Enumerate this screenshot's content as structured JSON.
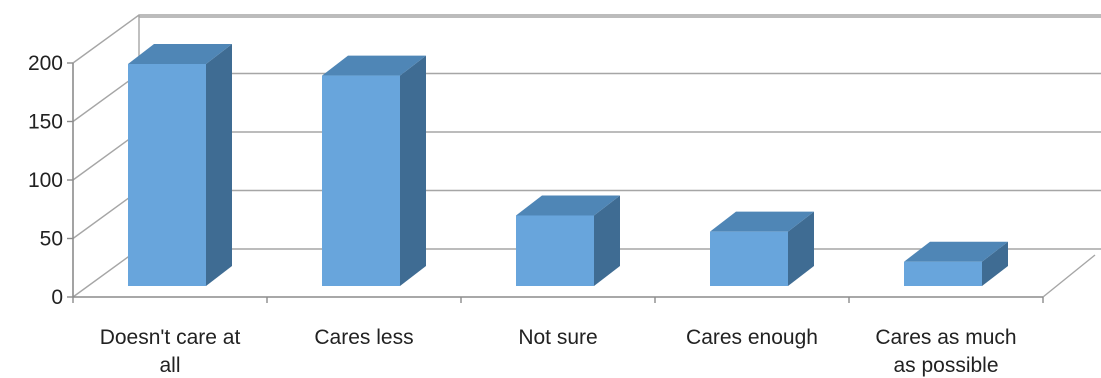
{
  "chart_data": {
    "type": "bar",
    "title": "",
    "xlabel": "",
    "ylabel": "",
    "categories": [
      "Doesn't care at all",
      "Cares less",
      "Not sure",
      "Cares enough",
      "Cares as much as possible"
    ],
    "category_lines": [
      [
        "Doesn't care at",
        "all"
      ],
      [
        "Cares less"
      ],
      [
        "Not sure"
      ],
      [
        "Cares enough"
      ],
      [
        "Cares as much",
        "as possible"
      ]
    ],
    "values": [
      192,
      182,
      61,
      47,
      21
    ],
    "ylim": [
      0,
      200
    ],
    "yticks": [
      0,
      50,
      100,
      150,
      200
    ],
    "yticklabels": [
      "0",
      "50",
      "100",
      "150",
      "200"
    ],
    "grid": true,
    "three_d": true,
    "legend": "none",
    "colors": {
      "bar_front": "#68A5DC",
      "bar_top": "#4F86B6",
      "bar_side": "#3F6C93",
      "grid": "#A6A6A6",
      "axis": "#8C8C8C"
    }
  }
}
